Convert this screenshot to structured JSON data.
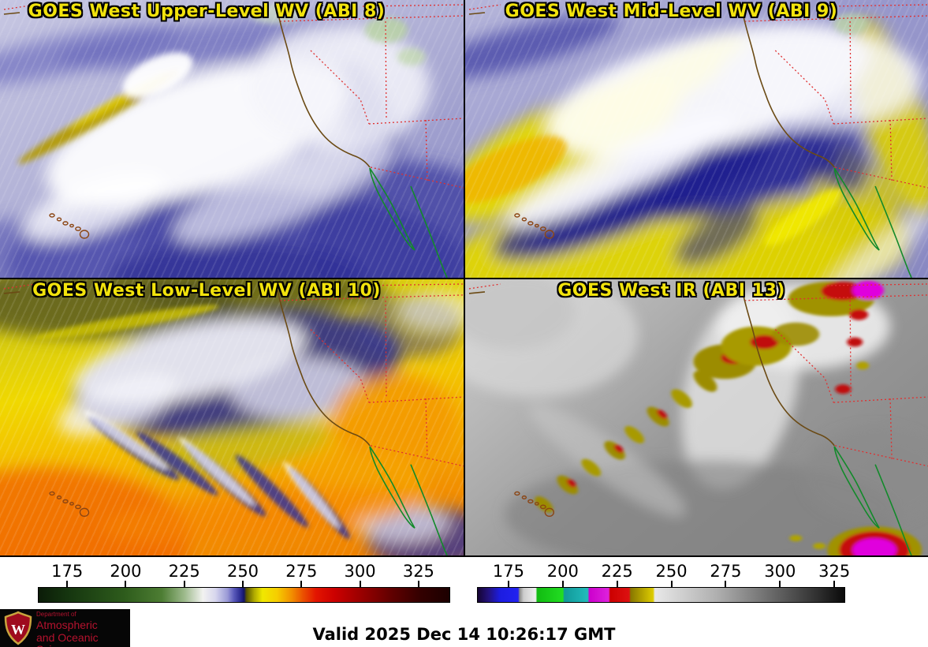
{
  "panels": [
    {
      "title": "GOES West Upper-Level WV (ABI 8)"
    },
    {
      "title": "GOES West Mid-Level WV (ABI 9)"
    },
    {
      "title": "GOES West Low-Level WV (ABI 10)"
    },
    {
      "title": "GOES West IR (ABI 13)"
    }
  ],
  "colorbars": {
    "wv": {
      "tick_values": [
        175,
        200,
        225,
        250,
        275,
        300,
        325
      ],
      "range": [
        162.5,
        338.5
      ],
      "palette": [
        {
          "f": 0.0,
          "c": "#0b1c08"
        },
        {
          "f": 0.07,
          "c": "#15350f"
        },
        {
          "f": 0.21,
          "c": "#2e5c1c"
        },
        {
          "f": 0.3,
          "c": "#4d7d33"
        },
        {
          "f": 0.355,
          "c": "#9dba8c"
        },
        {
          "f": 0.4,
          "c": "#f2f2f0"
        },
        {
          "f": 0.43,
          "c": "#d8d7ee"
        },
        {
          "f": 0.46,
          "c": "#9a99d6"
        },
        {
          "f": 0.475,
          "c": "#5b5bbb"
        },
        {
          "f": 0.493,
          "c": "#26268c"
        },
        {
          "f": 0.5,
          "c": "#141464"
        },
        {
          "f": 0.506,
          "c": "#585400"
        },
        {
          "f": 0.525,
          "c": "#b0aa00"
        },
        {
          "f": 0.545,
          "c": "#f0e800"
        },
        {
          "f": 0.58,
          "c": "#f6ce00"
        },
        {
          "f": 0.615,
          "c": "#f29100"
        },
        {
          "f": 0.645,
          "c": "#ea4e00"
        },
        {
          "f": 0.675,
          "c": "#e31500"
        },
        {
          "f": 0.72,
          "c": "#cc0000"
        },
        {
          "f": 0.782,
          "c": "#9c0000"
        },
        {
          "f": 0.86,
          "c": "#600000"
        },
        {
          "f": 0.93,
          "c": "#330000"
        },
        {
          "f": 1.0,
          "c": "#1c0000"
        }
      ]
    },
    "ir": {
      "tick_values": [
        175,
        200,
        225,
        250,
        275,
        300,
        325
      ],
      "range": [
        160.5,
        330.0
      ],
      "palette": [
        {
          "f": 0.0,
          "c": "#160433"
        },
        {
          "f": 0.03,
          "c": "#23127e"
        },
        {
          "f": 0.06,
          "c": "#1c1ce0"
        },
        {
          "f": 0.11,
          "c": "#2222f0"
        },
        {
          "f": 0.114,
          "c": "#8a8a8a"
        },
        {
          "f": 0.125,
          "c": "#cccccc"
        },
        {
          "f": 0.158,
          "c": "#f0f0f0"
        },
        {
          "f": 0.162,
          "c": "#11bb11"
        },
        {
          "f": 0.232,
          "c": "#22dd22"
        },
        {
          "f": 0.236,
          "c": "#119999"
        },
        {
          "f": 0.3,
          "c": "#22bbbb"
        },
        {
          "f": 0.304,
          "c": "#cc00cc"
        },
        {
          "f": 0.357,
          "c": "#dd22dd"
        },
        {
          "f": 0.361,
          "c": "#cc0000"
        },
        {
          "f": 0.413,
          "c": "#dd1111"
        },
        {
          "f": 0.417,
          "c": "#887700"
        },
        {
          "f": 0.478,
          "c": "#ddcc00"
        },
        {
          "f": 0.483,
          "c": "#e8e8e8"
        },
        {
          "f": 0.65,
          "c": "#b0b0b0"
        },
        {
          "f": 0.8,
          "c": "#6a6a6a"
        },
        {
          "f": 0.93,
          "c": "#2e2e2e"
        },
        {
          "f": 1.0,
          "c": "#0a0a0a"
        }
      ]
    }
  },
  "footer": {
    "valid_text": "Valid 2025 Dec 14 10:26:17 GMT"
  },
  "logo": {
    "dept": "Department of",
    "name_line1": "Atmospheric",
    "name_line2": "and Oceanic Sciences",
    "crest_letter": "W",
    "accent_color": "#b5122e"
  },
  "style_colors": {
    "title_yellow": "#f2e30c",
    "state_border_red": "#e03030",
    "coastline_brown": "#6b4a14",
    "mexico_green": "#128a2a"
  }
}
